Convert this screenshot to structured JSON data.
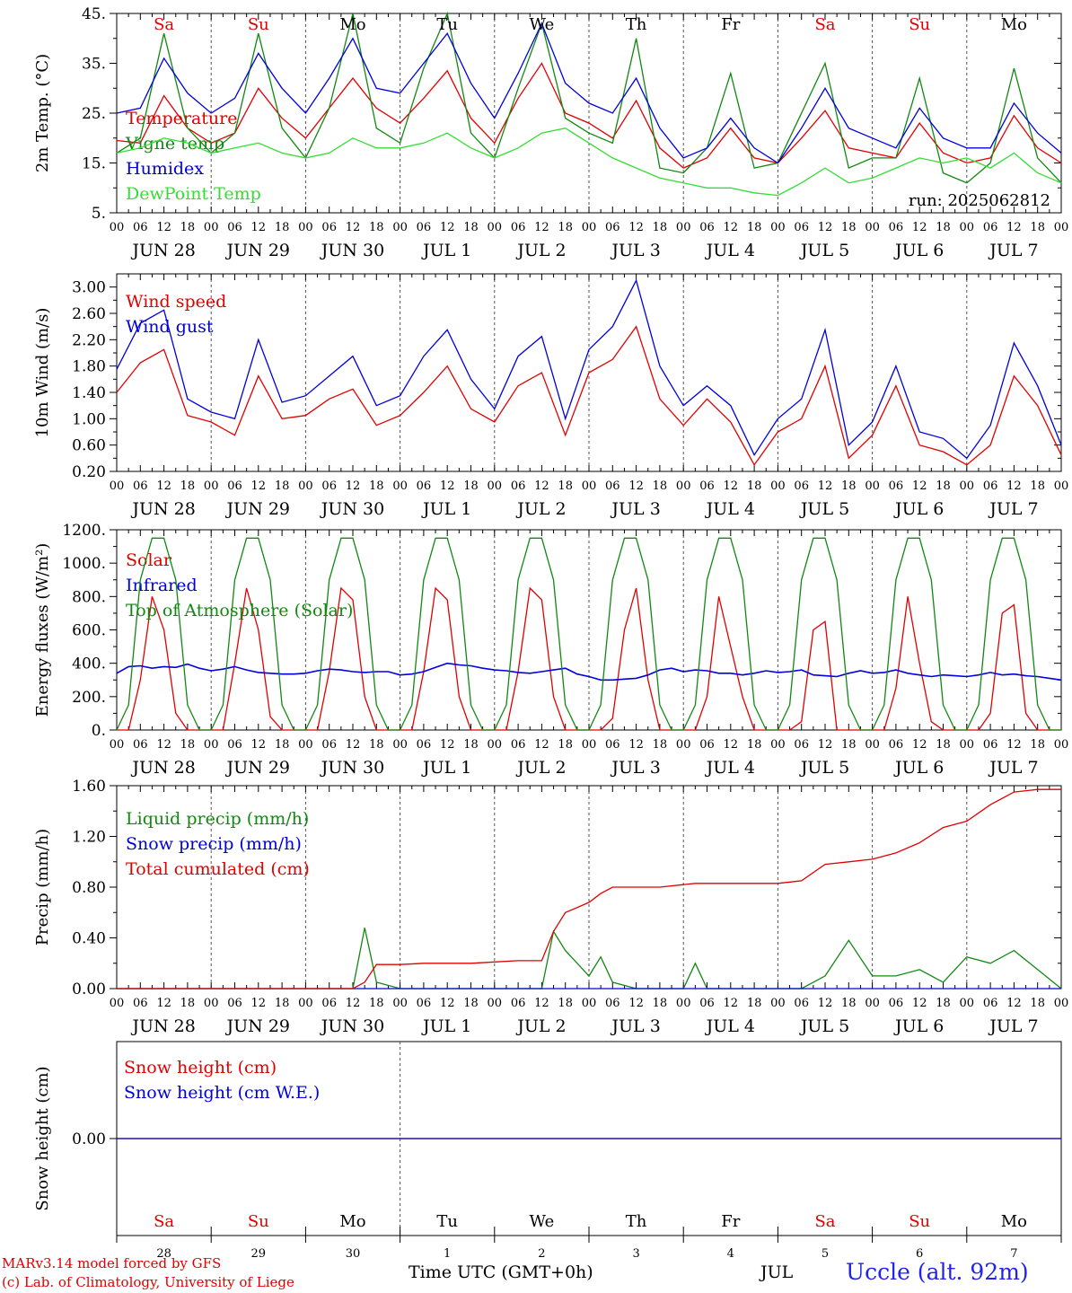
{
  "colors": {
    "red": "#e00000",
    "blue": "#0000dd",
    "green": "#118811",
    "lightgreen": "#33dd33",
    "black": "#000000",
    "grid": "#555555"
  },
  "days": {
    "weekdays": [
      "Sa",
      "Su",
      "Mo",
      "Tu",
      "We",
      "Th",
      "Fr",
      "Sa",
      "Su",
      "Mo"
    ],
    "weekend_flags": [
      true,
      true,
      false,
      false,
      false,
      false,
      false,
      true,
      true,
      false
    ],
    "labels": [
      "JUN 28",
      "JUN 29",
      "JUN 30",
      "JUL  1",
      "JUL  2",
      "JUL  3",
      "JUL  4",
      "JUL  5",
      "JUL  6",
      "JUL  7"
    ],
    "hour_ticks": [
      "00",
      "06",
      "12",
      "18"
    ],
    "last_tick": "00",
    "numbers": [
      "28",
      "29",
      "30",
      "1",
      "2",
      "3",
      "4",
      "5",
      "6",
      "7"
    ]
  },
  "chart_data": [
    {
      "id": "temperature",
      "type": "line",
      "ylabel": "2m Temp. (°C)",
      "ylim": [
        5,
        45
      ],
      "yticks": [
        "45.",
        "35.",
        "25.",
        "15.",
        "5."
      ],
      "ytick_values": [
        45,
        35,
        25,
        15,
        5
      ],
      "annotation": "run: 2025062812",
      "x_days": [
        0,
        0.25,
        0.5,
        0.75,
        1,
        1.25,
        1.5,
        1.75,
        2,
        2.25,
        2.5,
        2.75,
        3,
        3.25,
        3.5,
        3.75,
        4,
        4.25,
        4.5,
        4.75,
        5,
        5.25,
        5.5,
        5.75,
        6,
        6.25,
        6.5,
        6.75,
        7,
        7.25,
        7.5,
        7.75,
        8,
        8.25,
        8.5,
        8.75,
        9,
        9.25,
        9.5,
        9.75,
        10
      ],
      "series": [
        {
          "name": "Temperature",
          "color": "red",
          "values": [
            19.5,
            19,
            28.5,
            22,
            19,
            21,
            30,
            24,
            20,
            26,
            32,
            26,
            23,
            28,
            33.5,
            24,
            19,
            28,
            35,
            25,
            23,
            20,
            27.5,
            18,
            14,
            16,
            22,
            16,
            15,
            20,
            25.5,
            18,
            17,
            16,
            23,
            17,
            15,
            16,
            24.5,
            18,
            15
          ]
        },
        {
          "name": "Vigne temp",
          "color": "green",
          "values": [
            17,
            20,
            41,
            22,
            17,
            21,
            41,
            22,
            16,
            26,
            45,
            22,
            19,
            34,
            45,
            21,
            16,
            30,
            43,
            24,
            21,
            19,
            40,
            14,
            13,
            18,
            33,
            14,
            15,
            25,
            35,
            14,
            16,
            16,
            32,
            13,
            11,
            15,
            34,
            16,
            11
          ]
        },
        {
          "name": "Humidex",
          "color": "blue",
          "values": [
            25,
            26,
            36,
            29,
            25,
            28,
            37,
            30,
            25,
            32,
            40,
            30,
            29,
            35,
            41,
            31,
            24,
            33,
            43,
            31,
            27,
            25,
            32,
            22,
            16,
            18,
            24,
            18,
            15,
            22,
            30,
            22,
            20,
            18,
            26,
            20,
            18,
            18,
            27,
            21,
            17
          ]
        },
        {
          "name": "DewPoint Temp",
          "color": "lightgreen",
          "values": [
            17,
            18,
            20,
            19,
            17,
            18,
            19,
            17,
            16,
            17,
            20,
            18,
            18,
            19,
            21,
            18,
            16,
            18,
            21,
            22,
            19,
            16,
            14,
            12,
            11,
            10,
            10,
            9,
            8.5,
            11,
            14,
            11,
            12,
            14,
            16,
            15,
            16,
            14,
            17,
            13,
            11
          ]
        }
      ]
    },
    {
      "id": "wind",
      "type": "line",
      "ylabel": "10m Wind (m/s)",
      "ylim": [
        0.2,
        3.2
      ],
      "yticks": [
        "3.00",
        "2.60",
        "2.20",
        "1.80",
        "1.40",
        "1.00",
        "0.60",
        "0.20"
      ],
      "ytick_values": [
        3.0,
        2.6,
        2.2,
        1.8,
        1.4,
        1.0,
        0.6,
        0.2
      ],
      "x_days": [
        0,
        0.25,
        0.5,
        0.75,
        1,
        1.25,
        1.5,
        1.75,
        2,
        2.25,
        2.5,
        2.75,
        3,
        3.25,
        3.5,
        3.75,
        4,
        4.25,
        4.5,
        4.75,
        5,
        5.25,
        5.5,
        5.75,
        6,
        6.25,
        6.5,
        6.75,
        7,
        7.25,
        7.5,
        7.75,
        8,
        8.25,
        8.5,
        8.75,
        9,
        9.25,
        9.5,
        9.75,
        10
      ],
      "series": [
        {
          "name": "Wind speed",
          "color": "red",
          "values": [
            1.4,
            1.85,
            2.05,
            1.05,
            0.95,
            0.75,
            1.65,
            1.0,
            1.05,
            1.3,
            1.45,
            0.9,
            1.05,
            1.4,
            1.8,
            1.15,
            0.95,
            1.5,
            1.7,
            0.75,
            1.7,
            1.9,
            2.4,
            1.3,
            0.9,
            1.3,
            0.95,
            0.3,
            0.8,
            1.0,
            1.8,
            0.4,
            0.75,
            1.5,
            0.6,
            0.5,
            0.3,
            0.6,
            1.65,
            1.2,
            0.45
          ]
        },
        {
          "name": "Wind gust",
          "color": "blue",
          "values": [
            1.75,
            2.45,
            2.65,
            1.3,
            1.1,
            1.0,
            2.2,
            1.25,
            1.35,
            1.65,
            1.95,
            1.2,
            1.35,
            1.95,
            2.35,
            1.6,
            1.15,
            1.95,
            2.25,
            1.0,
            2.05,
            2.4,
            3.1,
            1.8,
            1.2,
            1.5,
            1.2,
            0.45,
            1.0,
            1.3,
            2.35,
            0.6,
            0.95,
            1.8,
            0.8,
            0.7,
            0.4,
            0.9,
            2.15,
            1.5,
            0.6
          ]
        }
      ]
    },
    {
      "id": "energy",
      "type": "line",
      "ylabel": "Energy fluxes (W/m²)",
      "ylim": [
        0,
        1200
      ],
      "yticks": [
        "1200.",
        "1000.",
        "800.",
        "600.",
        "400.",
        "200.",
        "0."
      ],
      "ytick_values": [
        1200,
        1000,
        800,
        600,
        400,
        200,
        0
      ],
      "x_days": [
        0,
        0.125,
        0.25,
        0.375,
        0.5,
        0.625,
        0.75,
        0.875,
        1,
        1.125,
        1.25,
        1.375,
        1.5,
        1.625,
        1.75,
        1.875,
        2,
        2.125,
        2.25,
        2.375,
        2.5,
        2.625,
        2.75,
        2.875,
        3,
        3.125,
        3.25,
        3.375,
        3.5,
        3.625,
        3.75,
        3.875,
        4,
        4.125,
        4.25,
        4.375,
        4.5,
        4.625,
        4.75,
        4.875,
        5,
        5.125,
        5.25,
        5.375,
        5.5,
        5.625,
        5.75,
        5.875,
        6,
        6.125,
        6.25,
        6.375,
        6.5,
        6.625,
        6.75,
        6.875,
        7,
        7.125,
        7.25,
        7.375,
        7.5,
        7.625,
        7.75,
        7.875,
        8,
        8.125,
        8.25,
        8.375,
        8.5,
        8.625,
        8.75,
        8.875,
        9,
        9.125,
        9.25,
        9.375,
        9.5,
        9.625,
        9.75,
        9.875,
        10
      ],
      "series": [
        {
          "name": "Solar",
          "color": "red",
          "values": [
            0,
            0,
            300,
            800,
            600,
            100,
            0,
            0,
            0,
            0,
            400,
            850,
            600,
            80,
            0,
            0,
            0,
            0,
            350,
            850,
            780,
            200,
            0,
            0,
            0,
            0,
            350,
            850,
            780,
            200,
            0,
            0,
            0,
            0,
            350,
            850,
            780,
            200,
            0,
            0,
            0,
            0,
            70,
            600,
            850,
            300,
            0,
            0,
            0,
            0,
            200,
            800,
            500,
            200,
            0,
            0,
            0,
            0,
            50,
            600,
            650,
            0,
            0,
            0,
            0,
            0,
            250,
            800,
            400,
            50,
            0,
            0,
            0,
            0,
            100,
            700,
            750,
            100,
            0,
            0,
            0
          ]
        },
        {
          "name": "Infrared",
          "color": "blue",
          "values": [
            340,
            380,
            385,
            370,
            380,
            375,
            395,
            370,
            355,
            365,
            380,
            360,
            345,
            340,
            335,
            335,
            340,
            355,
            365,
            360,
            350,
            345,
            350,
            350,
            330,
            335,
            350,
            375,
            400,
            390,
            385,
            370,
            360,
            355,
            345,
            340,
            350,
            360,
            370,
            335,
            320,
            300,
            300,
            305,
            310,
            330,
            360,
            370,
            350,
            360,
            355,
            340,
            340,
            330,
            340,
            355,
            345,
            350,
            360,
            330,
            325,
            320,
            340,
            355,
            340,
            345,
            360,
            340,
            330,
            320,
            330,
            325,
            320,
            330,
            345,
            330,
            335,
            325,
            320,
            310,
            300
          ]
        },
        {
          "name": "Top of Atmosphere (Solar)",
          "color": "green",
          "values": [
            0,
            150,
            900,
            1150,
            1150,
            900,
            150,
            0,
            0,
            150,
            900,
            1150,
            1150,
            900,
            150,
            0,
            0,
            150,
            900,
            1150,
            1150,
            900,
            150,
            0,
            0,
            150,
            900,
            1150,
            1150,
            900,
            150,
            0,
            0,
            150,
            900,
            1150,
            1150,
            900,
            150,
            0,
            0,
            150,
            900,
            1150,
            1150,
            900,
            150,
            0,
            0,
            150,
            900,
            1150,
            1150,
            900,
            150,
            0,
            0,
            150,
            900,
            1150,
            1150,
            900,
            150,
            0,
            0,
            150,
            900,
            1150,
            1150,
            900,
            150,
            0,
            0,
            150,
            900,
            1150,
            1150,
            900,
            150,
            0,
            0
          ]
        }
      ]
    },
    {
      "id": "precip",
      "type": "line",
      "ylabel": "Precip (mm/h)",
      "ylim": [
        0,
        1.6
      ],
      "yticks": [
        "1.60",
        "1.20",
        "0.80",
        "0.40",
        "0.00"
      ],
      "ytick_values": [
        1.6,
        1.2,
        0.8,
        0.4,
        0.0
      ],
      "x_days": [
        0,
        0.25,
        0.5,
        0.75,
        1,
        1.25,
        1.5,
        1.75,
        2,
        2.25,
        2.5,
        2.625,
        2.75,
        3,
        3.25,
        3.5,
        3.75,
        4,
        4.25,
        4.5,
        4.625,
        4.75,
        5,
        5.125,
        5.25,
        5.5,
        5.75,
        6,
        6.125,
        6.25,
        6.5,
        6.75,
        7,
        7.25,
        7.5,
        7.75,
        8,
        8.25,
        8.5,
        8.75,
        9,
        9.25,
        9.5,
        9.75,
        10
      ],
      "series": [
        {
          "name": "Liquid precip (mm/h)",
          "color": "green",
          "values": [
            0,
            0,
            0,
            0,
            0,
            0,
            0,
            0,
            0,
            0,
            0,
            0.48,
            0.05,
            0,
            0,
            0,
            0,
            0,
            0,
            0,
            0.45,
            0.3,
            0.1,
            0.25,
            0.05,
            0,
            0,
            0,
            0.2,
            0,
            0,
            0,
            0,
            0,
            0.1,
            0.38,
            0.1,
            0.1,
            0.15,
            0.05,
            0.25,
            0.2,
            0.3,
            0.15,
            0
          ]
        },
        {
          "name": "Snow precip (mm/h)",
          "color": "blue",
          "values": [
            0,
            0,
            0,
            0,
            0,
            0,
            0,
            0,
            0,
            0,
            0,
            0,
            0,
            0,
            0,
            0,
            0,
            0,
            0,
            0,
            0,
            0,
            0,
            0,
            0,
            0,
            0,
            0,
            0,
            0,
            0,
            0,
            0,
            0,
            0,
            0,
            0,
            0,
            0,
            0,
            0,
            0,
            0,
            0,
            0
          ]
        },
        {
          "name": "Total cumulated (cm)",
          "color": "red",
          "values": [
            0,
            0,
            0,
            0,
            0,
            0,
            0,
            0,
            0,
            0,
            0,
            0.05,
            0.19,
            0.19,
            0.2,
            0.2,
            0.2,
            0.21,
            0.22,
            0.22,
            0.45,
            0.6,
            0.68,
            0.75,
            0.8,
            0.8,
            0.8,
            0.82,
            0.83,
            0.83,
            0.83,
            0.83,
            0.83,
            0.85,
            0.98,
            1.0,
            1.02,
            1.07,
            1.15,
            1.27,
            1.32,
            1.45,
            1.55,
            1.57,
            1.57
          ]
        }
      ]
    },
    {
      "id": "snow",
      "type": "line",
      "ylabel": "Snow height (cm)",
      "ylim": [
        -1,
        1
      ],
      "yticks": [
        "0.00"
      ],
      "ytick_values": [
        0
      ],
      "x_days": [
        0,
        10
      ],
      "series": [
        {
          "name": "Snow height (cm)",
          "color": "red",
          "values": [
            0,
            0
          ]
        },
        {
          "name": "Snow height (cm W.E.)",
          "color": "blue",
          "values": [
            0,
            0
          ]
        }
      ]
    }
  ],
  "footer": {
    "credit1": "MARv3.14 model forced by GFS",
    "credit2": "(c) Lab. of Climatology, University of Liege",
    "time_label": "Time UTC (GMT+0h)",
    "month": "JUL",
    "station": "Uccle (alt. 92m)"
  }
}
